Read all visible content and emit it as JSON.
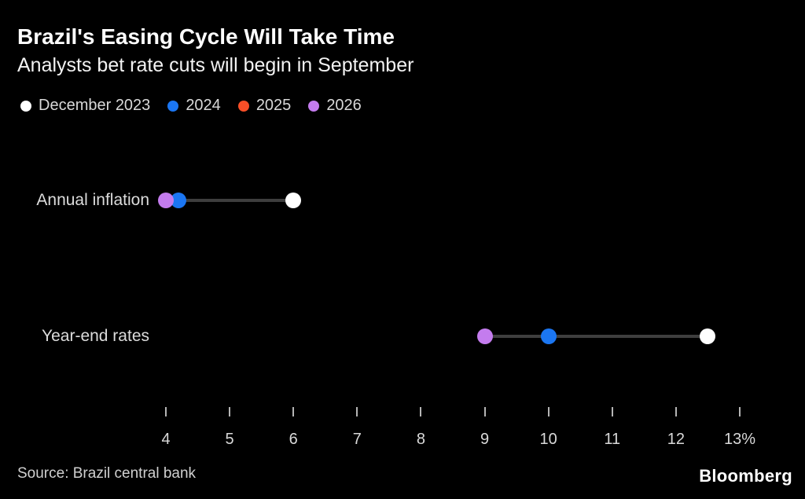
{
  "header": {
    "title": "Brazil's Easing Cycle Will Take Time",
    "subtitle": "Analysts bet rate cuts will begin in September"
  },
  "legend": [
    {
      "label": "December 2023",
      "color": "#ffffff"
    },
    {
      "label": "2024",
      "color": "#1b76f2"
    },
    {
      "label": "2025",
      "color": "#f94f27"
    },
    {
      "label": "2026",
      "color": "#c47cee"
    }
  ],
  "chart_data": {
    "type": "scatter",
    "subtype": "dot-plot-range",
    "unit": "%",
    "x_axis": {
      "min": 4,
      "max": 13,
      "tick_values": [
        4,
        5,
        6,
        7,
        8,
        9,
        10,
        11,
        12,
        13
      ],
      "tick_labels": [
        "4",
        "5",
        "6",
        "7",
        "8",
        "9",
        "10",
        "11",
        "12",
        "13%"
      ]
    },
    "series_colors": {
      "December 2023": "#ffffff",
      "2024": "#1b76f2",
      "2025": "#f94f27",
      "2026": "#c47cee"
    },
    "rows": [
      {
        "label": "Annual inflation",
        "points": [
          {
            "series": "December 2023",
            "value": 6.0
          },
          {
            "series": "2024",
            "value": 4.2
          },
          {
            "series": "2026",
            "value": 4.0
          }
        ]
      },
      {
        "label": "Year-end rates",
        "points": [
          {
            "series": "December 2023",
            "value": 12.5
          },
          {
            "series": "2024",
            "value": 10.0
          },
          {
            "series": "2026",
            "value": 9.0
          }
        ]
      }
    ],
    "legend_position": "top",
    "grid": false
  },
  "footer": {
    "source": "Source: Brazil central bank",
    "brand": "Bloomberg"
  }
}
